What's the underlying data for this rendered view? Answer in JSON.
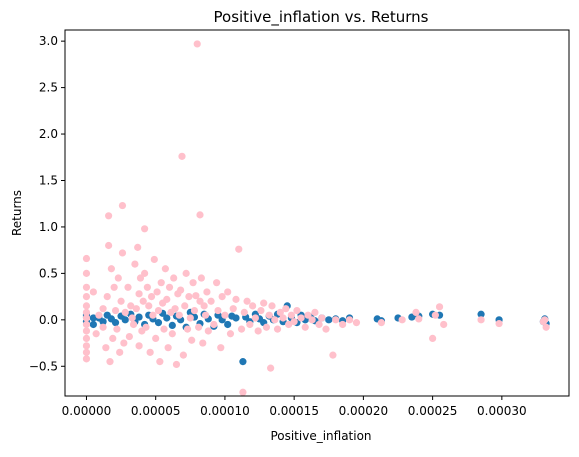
{
  "chart_data": {
    "type": "scatter",
    "title": "Positive_inflation vs. Returns",
    "xlabel": "Positive_inflation",
    "ylabel": "Returns",
    "xlim": [
      -1.55e-05,
      0.0003485
    ],
    "ylim": [
      -0.82,
      3.12
    ],
    "x_ticks": [
      0,
      5e-05,
      0.0001,
      0.00015,
      0.0002,
      0.00025,
      0.0003
    ],
    "x_tick_labels": [
      "0.00000",
      "0.00005",
      "0.00010",
      "0.00015",
      "0.00020",
      "0.00025",
      "0.00030"
    ],
    "y_ticks": [
      -0.5,
      0,
      0.5,
      1,
      1.5,
      2,
      2.5,
      3
    ],
    "y_tick_labels": [
      "−0.5",
      "0.0",
      "0.5",
      "1.0",
      "1.5",
      "2.0",
      "2.5",
      "3.0"
    ],
    "grid": false,
    "series": [
      {
        "color": "#1f77b4",
        "points": [
          [
            0,
            0.03
          ],
          [
            0,
            -0.02
          ],
          [
            0,
            0.05
          ],
          [
            5e-06,
            0.02
          ],
          [
            5e-06,
            -0.05
          ],
          [
            9e-06,
            0.02
          ],
          [
            1.2e-05,
            -0.02
          ],
          [
            1.5e-05,
            0.05
          ],
          [
            1.8e-05,
            0.01
          ],
          [
            2.1e-05,
            -0.03
          ],
          [
            2.5e-05,
            0.04
          ],
          [
            2.8e-05,
            0.0
          ],
          [
            3.2e-05,
            0.06
          ],
          [
            3.5e-05,
            -0.02
          ],
          [
            3.8e-05,
            0.03
          ],
          [
            4.2e-05,
            -0.05
          ],
          [
            4.5e-05,
            0.05
          ],
          [
            4.8e-05,
            0.01
          ],
          [
            5.2e-05,
            -0.03
          ],
          [
            5.5e-05,
            0.07
          ],
          [
            5.8e-05,
            0.02
          ],
          [
            6.2e-05,
            -0.06
          ],
          [
            6.5e-05,
            0.04
          ],
          [
            6.8e-05,
            0.0
          ],
          [
            7.2e-05,
            -0.08
          ],
          [
            7.5e-05,
            0.08
          ],
          [
            7.8e-05,
            0.03
          ],
          [
            8.2e-05,
            -0.04
          ],
          [
            8.5e-05,
            0.06
          ],
          [
            8.8e-05,
            0.01
          ],
          [
            9.2e-05,
            -0.07
          ],
          [
            9.5e-05,
            0.05
          ],
          [
            9.8e-05,
            0.0
          ],
          [
            0.000102,
            -0.05
          ],
          [
            0.000105,
            0.04
          ],
          [
            0.000108,
            0.02
          ],
          [
            0.000113,
            -0.45
          ],
          [
            0.000115,
            0.03
          ],
          [
            0.000118,
            -0.02
          ],
          [
            0.000122,
            0.06
          ],
          [
            0.000125,
            0.01
          ],
          [
            0.000128,
            -0.03
          ],
          [
            0.000132,
            0.04
          ],
          [
            0.000135,
            0.0
          ],
          [
            0.000138,
            0.06
          ],
          [
            0.000142,
            -0.02
          ],
          [
            0.000145,
            0.15
          ],
          [
            0.000148,
            0.02
          ],
          [
            0.000152,
            -0.03
          ],
          [
            0.000155,
            0.05
          ],
          [
            0.000158,
            0.0
          ],
          [
            0.000162,
            0.03
          ],
          [
            0.000165,
            -0.01
          ],
          [
            0.00017,
            0.02
          ],
          [
            0.000175,
            0.0
          ],
          [
            0.00018,
            0.01
          ],
          [
            0.000185,
            -0.01
          ],
          [
            0.00019,
            0.02
          ],
          [
            0.00021,
            0.01
          ],
          [
            0.000213,
            -0.01
          ],
          [
            0.000225,
            0.02
          ],
          [
            0.000235,
            0.03
          ],
          [
            0.00024,
            0.04
          ],
          [
            0.00025,
            0.06
          ],
          [
            0.000255,
            0.05
          ],
          [
            0.000285,
            0.06
          ],
          [
            0.000298,
            0.0
          ],
          [
            0.00033,
            -0.02
          ],
          [
            0.000331,
            0.01
          ],
          [
            0.000332,
            -0.04
          ]
        ]
      },
      {
        "color": "#ffc0cb",
        "points": [
          [
            0,
            0.66
          ],
          [
            0,
            0.5
          ],
          [
            0,
            0.35
          ],
          [
            0,
            0.25
          ],
          [
            0,
            0.15
          ],
          [
            0,
            0.08
          ],
          [
            0,
            0.02
          ],
          [
            0,
            -0.05
          ],
          [
            0,
            -0.12
          ],
          [
            0,
            -0.2
          ],
          [
            0,
            -0.28
          ],
          [
            0,
            -0.35
          ],
          [
            0,
            -0.42
          ],
          [
            5e-06,
            0.3
          ],
          [
            7e-06,
            -0.15
          ],
          [
            9e-06,
            0.05
          ],
          [
            1.2e-05,
            0.12
          ],
          [
            1.2e-05,
            -0.08
          ],
          [
            1.4e-05,
            -0.3
          ],
          [
            1.5e-05,
            0.25
          ],
          [
            1.6e-05,
            0.8
          ],
          [
            1.6e-05,
            1.12
          ],
          [
            1.7e-05,
            -0.45
          ],
          [
            1.8e-05,
            0.55
          ],
          [
            1.9e-05,
            -0.2
          ],
          [
            2e-05,
            0.35
          ],
          [
            2.1e-05,
            0.1
          ],
          [
            2.2e-05,
            -0.1
          ],
          [
            2.3e-05,
            0.45
          ],
          [
            2.4e-05,
            -0.35
          ],
          [
            2.5e-05,
            0.2
          ],
          [
            2.6e-05,
            0.72
          ],
          [
            2.6e-05,
            1.23
          ],
          [
            2.7e-05,
            -0.25
          ],
          [
            2.8e-05,
            0.08
          ],
          [
            3e-05,
            0.35
          ],
          [
            3.1e-05,
            -0.18
          ],
          [
            3.2e-05,
            0.15
          ],
          [
            3.3e-05,
            0.02
          ],
          [
            3.4e-05,
            -0.05
          ],
          [
            3.5e-05,
            0.6
          ],
          [
            3.6e-05,
            0.12
          ],
          [
            3.7e-05,
            0.78
          ],
          [
            3.8e-05,
            -0.28
          ],
          [
            3.8e-05,
            0.28
          ],
          [
            3.9e-05,
            0.45
          ],
          [
            4e-05,
            -0.12
          ],
          [
            4.1e-05,
            0.2
          ],
          [
            4.2e-05,
            0.5
          ],
          [
            4.2e-05,
            0.98
          ],
          [
            4.3e-05,
            -0.08
          ],
          [
            4.4e-05,
            0.35
          ],
          [
            4.5e-05,
            0.15
          ],
          [
            4.6e-05,
            -0.35
          ],
          [
            4.7e-05,
            0.25
          ],
          [
            4.8e-05,
            0.05
          ],
          [
            4.9e-05,
            0.65
          ],
          [
            5e-05,
            -0.2
          ],
          [
            5.1e-05,
            0.3
          ],
          [
            5.2e-05,
            0.1
          ],
          [
            5.3e-05,
            -0.45
          ],
          [
            5.4e-05,
            0.4
          ],
          [
            5.5e-05,
            0.18
          ],
          [
            5.6e-05,
            -0.1
          ],
          [
            5.7e-05,
            0.55
          ],
          [
            5.8e-05,
            0.22
          ],
          [
            5.9e-05,
            -0.3
          ],
          [
            6e-05,
            0.35
          ],
          [
            6.1e-05,
            0.08
          ],
          [
            6.2e-05,
            -0.15
          ],
          [
            6.3e-05,
            0.45
          ],
          [
            6.4e-05,
            0.12
          ],
          [
            6.5e-05,
            -0.48
          ],
          [
            6.6e-05,
            0.28
          ],
          [
            6.7e-05,
            0.05
          ],
          [
            6.8e-05,
            0.32
          ],
          [
            6.9e-05,
            1.76
          ],
          [
            7e-05,
            -0.38
          ],
          [
            7.1e-05,
            0.15
          ],
          [
            7.2e-05,
            0.5
          ],
          [
            7.3e-05,
            -0.1
          ],
          [
            7.4e-05,
            0.25
          ],
          [
            7.5e-05,
            0.02
          ],
          [
            7.6e-05,
            -0.22
          ],
          [
            7.7e-05,
            0.4
          ],
          [
            7.8e-05,
            0.1
          ],
          [
            7.9e-05,
            0.26
          ],
          [
            8e-05,
            2.97
          ],
          [
            8.1e-05,
            -0.08
          ],
          [
            8.2e-05,
            0.2
          ],
          [
            8.2e-05,
            1.13
          ],
          [
            8.3e-05,
            0.45
          ],
          [
            8.4e-05,
            -0.25
          ],
          [
            8.5e-05,
            0.15
          ],
          [
            8.6e-05,
            0.05
          ],
          [
            8.7e-05,
            0.3
          ],
          [
            8.8e-05,
            -0.12
          ],
          [
            9e-05,
            0.2
          ],
          [
            9.2e-05,
            -0.05
          ],
          [
            9.4e-05,
            0.4
          ],
          [
            9.5e-05,
            0.1
          ],
          [
            9.7e-05,
            -0.3
          ],
          [
            9.8e-05,
            0.25
          ],
          [
            0.0001,
            0.05
          ],
          [
            0.000102,
            0.3
          ],
          [
            0.000104,
            -0.15
          ],
          [
            0.000106,
            0.12
          ],
          [
            0.000108,
            0.22
          ],
          [
            0.00011,
            0.76
          ],
          [
            0.000112,
            -0.1
          ],
          [
            0.000113,
            -0.78
          ],
          [
            0.000114,
            0.08
          ],
          [
            0.000116,
            0.2
          ],
          [
            0.000118,
            -0.05
          ],
          [
            0.00012,
            0.15
          ],
          [
            0.000122,
            0.02
          ],
          [
            0.000124,
            -0.12
          ],
          [
            0.000126,
            0.1
          ],
          [
            0.000128,
            0.18
          ],
          [
            0.00013,
            -0.08
          ],
          [
            0.000132,
            0.05
          ],
          [
            0.000133,
            -0.52
          ],
          [
            0.000134,
            0.15
          ],
          [
            0.000136,
            0.0
          ],
          [
            0.000138,
            -0.1
          ],
          [
            0.00014,
            0.08
          ],
          [
            0.000142,
            0.02
          ],
          [
            0.000144,
            0.12
          ],
          [
            0.000146,
            -0.05
          ],
          [
            0.000148,
            0.05
          ],
          [
            0.00015,
            -0.02
          ],
          [
            0.000152,
            0.1
          ],
          [
            0.000155,
            0.02
          ],
          [
            0.000158,
            -0.08
          ],
          [
            0.00016,
            0.05
          ],
          [
            0.000163,
            0.0
          ],
          [
            0.000165,
            0.08
          ],
          [
            0.000168,
            -0.05
          ],
          [
            0.00017,
            0.02
          ],
          [
            0.000173,
            -0.1
          ],
          [
            0.000178,
            -0.38
          ],
          [
            0.00018,
            0.0
          ],
          [
            0.000185,
            -0.05
          ],
          [
            0.00019,
            0.0
          ],
          [
            0.000195,
            -0.03
          ],
          [
            0.000213,
            -0.03
          ],
          [
            0.000228,
            0.0
          ],
          [
            0.000238,
            0.08
          ],
          [
            0.00024,
            0.01
          ],
          [
            0.00025,
            -0.2
          ],
          [
            0.000252,
            0.05
          ],
          [
            0.000255,
            0.14
          ],
          [
            0.000258,
            -0.05
          ],
          [
            0.000285,
            0.0
          ],
          [
            0.000298,
            -0.04
          ],
          [
            0.00033,
            -0.02
          ],
          [
            0.000331,
            0.0
          ],
          [
            0.000332,
            -0.08
          ]
        ]
      }
    ]
  }
}
